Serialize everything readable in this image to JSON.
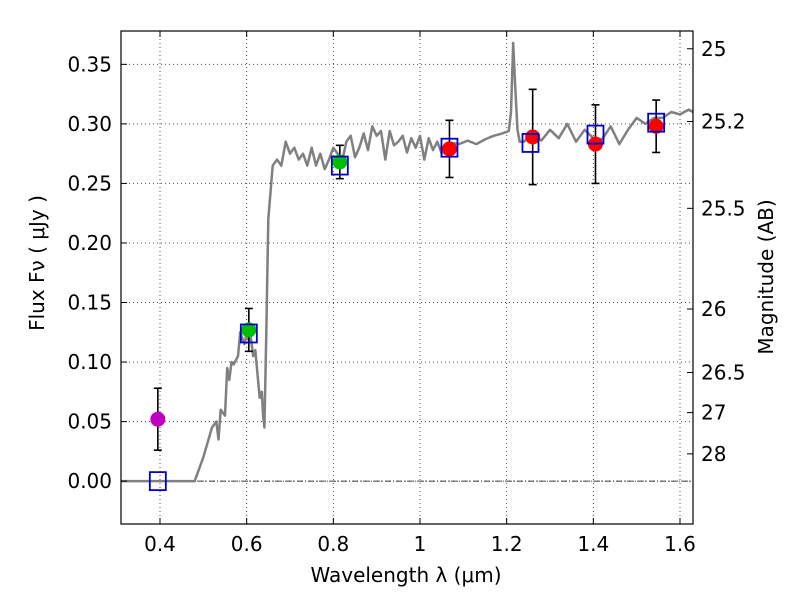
{
  "chart_data": {
    "type": "scatter",
    "title": "",
    "xlabel": "Wavelength  λ (μm)",
    "ylabel": "Flux  Fν  ( μJy )",
    "y2label": "Magnitude (AB)",
    "xlim": [
      0.31,
      1.63
    ],
    "ylim": [
      -0.036,
      0.378
    ],
    "xticks": [
      {
        "value": 0.4,
        "label": "0.4"
      },
      {
        "value": 0.6,
        "label": "0.6"
      },
      {
        "value": 0.8,
        "label": "0.8"
      },
      {
        "value": 1.0,
        "label": "1"
      },
      {
        "value": 1.2,
        "label": "1.2"
      },
      {
        "value": 1.4,
        "label": "1.4"
      },
      {
        "value": 1.6,
        "label": "1.6"
      }
    ],
    "yticks": [
      {
        "value": 0.0,
        "label": "0.00"
      },
      {
        "value": 0.05,
        "label": "0.05"
      },
      {
        "value": 0.1,
        "label": "0.10"
      },
      {
        "value": 0.15,
        "label": "0.15"
      },
      {
        "value": 0.2,
        "label": "0.20"
      },
      {
        "value": 0.25,
        "label": "0.25"
      },
      {
        "value": 0.3,
        "label": "0.30"
      },
      {
        "value": 0.35,
        "label": "0.35"
      }
    ],
    "magnitude_ticks": [
      {
        "mag": 25,
        "label": "25"
      },
      {
        "mag": 25.2,
        "label": "25.2"
      },
      {
        "mag": 25.5,
        "label": "25.5"
      },
      {
        "mag": 26,
        "label": "26"
      },
      {
        "mag": 26.5,
        "label": "26.5"
      },
      {
        "mag": 27,
        "label": "27"
      },
      {
        "mag": 28,
        "label": "28"
      }
    ],
    "grid": true,
    "zero_line": true,
    "model_color": "#808080",
    "model_spectrum": {
      "x": [
        0.31,
        0.48,
        0.5,
        0.52,
        0.53,
        0.535,
        0.54,
        0.55,
        0.555,
        0.56,
        0.565,
        0.57,
        0.58,
        0.585,
        0.59,
        0.595,
        0.6,
        0.605,
        0.61,
        0.615,
        0.62,
        0.625,
        0.63,
        0.635,
        0.638,
        0.641,
        0.645,
        0.65,
        0.66,
        0.67,
        0.68,
        0.69,
        0.7,
        0.71,
        0.72,
        0.73,
        0.74,
        0.75,
        0.76,
        0.77,
        0.78,
        0.79,
        0.8,
        0.81,
        0.82,
        0.83,
        0.84,
        0.85,
        0.86,
        0.87,
        0.88,
        0.89,
        0.9,
        0.91,
        0.92,
        0.93,
        0.94,
        0.95,
        0.96,
        0.97,
        0.98,
        0.99,
        1.0,
        1.01,
        1.02,
        1.03,
        1.04,
        1.05,
        1.07,
        1.09,
        1.11,
        1.13,
        1.15,
        1.17,
        1.19,
        1.205,
        1.21,
        1.215,
        1.22,
        1.225,
        1.23,
        1.24,
        1.26,
        1.28,
        1.3,
        1.32,
        1.34,
        1.36,
        1.38,
        1.4,
        1.42,
        1.44,
        1.46,
        1.48,
        1.5,
        1.52,
        1.54,
        1.56,
        1.58,
        1.6,
        1.62,
        1.63
      ],
      "y": [
        0.0,
        0.0,
        0.02,
        0.045,
        0.05,
        0.035,
        0.06,
        0.055,
        0.095,
        0.085,
        0.1,
        0.098,
        0.105,
        0.125,
        0.12,
        0.115,
        0.125,
        0.118,
        0.12,
        0.105,
        0.11,
        0.09,
        0.07,
        0.075,
        0.055,
        0.045,
        0.12,
        0.22,
        0.265,
        0.27,
        0.265,
        0.285,
        0.275,
        0.28,
        0.27,
        0.275,
        0.265,
        0.28,
        0.265,
        0.275,
        0.262,
        0.27,
        0.28,
        0.275,
        0.268,
        0.285,
        0.29,
        0.272,
        0.28,
        0.292,
        0.278,
        0.298,
        0.29,
        0.294,
        0.27,
        0.294,
        0.282,
        0.285,
        0.29,
        0.276,
        0.288,
        0.28,
        0.29,
        0.27,
        0.288,
        0.278,
        0.285,
        0.275,
        0.284,
        0.283,
        0.286,
        0.283,
        0.287,
        0.29,
        0.292,
        0.294,
        0.31,
        0.368,
        0.33,
        0.295,
        0.285,
        0.285,
        0.292,
        0.286,
        0.295,
        0.288,
        0.3,
        0.285,
        0.295,
        0.288,
        0.287,
        0.298,
        0.283,
        0.295,
        0.305,
        0.3,
        0.305,
        0.305,
        0.31,
        0.308,
        0.312,
        0.31
      ]
    },
    "model_bands": {
      "marker": "open-square",
      "color": "#0000cc",
      "points": [
        {
          "x": 0.395,
          "y": 0.0
        },
        {
          "x": 0.605,
          "y": 0.124
        },
        {
          "x": 0.815,
          "y": 0.265
        },
        {
          "x": 1.068,
          "y": 0.28
        },
        {
          "x": 1.255,
          "y": 0.284
        },
        {
          "x": 1.405,
          "y": 0.291
        },
        {
          "x": 1.545,
          "y": 0.301
        }
      ]
    },
    "observations": [
      {
        "x": 0.395,
        "y": 0.052,
        "yerr": 0.026,
        "color": "#bf00bf"
      },
      {
        "x": 0.605,
        "y": 0.127,
        "yerr": 0.018,
        "color": "#00bf00"
      },
      {
        "x": 0.815,
        "y": 0.268,
        "yerr": 0.014,
        "color": "#00bf00"
      },
      {
        "x": 1.068,
        "y": 0.279,
        "yerr": 0.024,
        "color": "#ff0000"
      },
      {
        "x": 1.26,
        "y": 0.289,
        "yerr": 0.04,
        "color": "#ff0000"
      },
      {
        "x": 1.405,
        "y": 0.283,
        "yerr": 0.033,
        "color": "#ff0000"
      },
      {
        "x": 1.545,
        "y": 0.298,
        "yerr": 0.022,
        "color": "#ff0000"
      }
    ]
  }
}
